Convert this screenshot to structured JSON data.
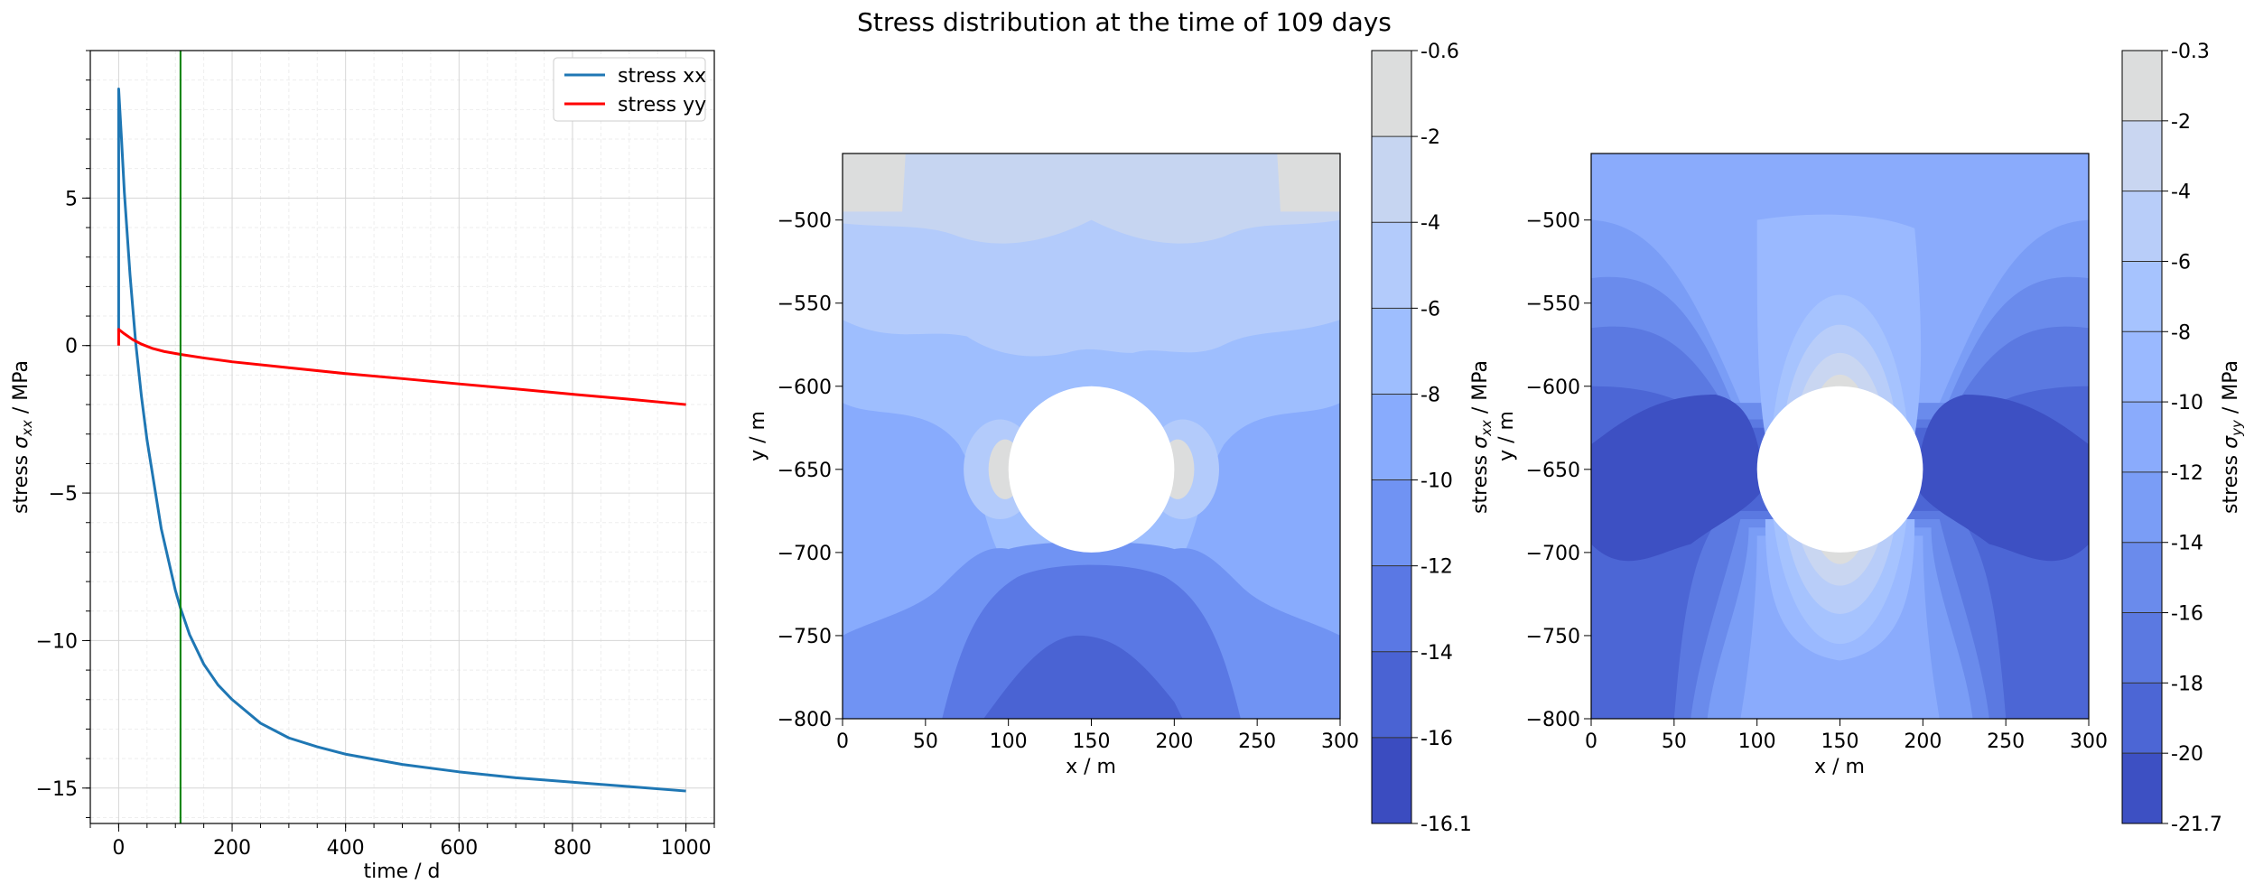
{
  "title": "Stress distribution at the time of 109 days",
  "chart_data": [
    {
      "type": "line",
      "xlabel": "time / d",
      "ylabel": {
        "prefix": "stress ",
        "symbol": "σ",
        "sub": "xx",
        "suffix": " / MPa"
      },
      "xlim": [
        -50,
        1050
      ],
      "ylim": [
        -16.2,
        10
      ],
      "xticks": [
        0,
        200,
        400,
        600,
        800,
        1000
      ],
      "xtick_labels": [
        "0",
        "200",
        "400",
        "600",
        "800",
        "1000"
      ],
      "yticks": [
        5,
        0,
        -5,
        -10,
        -15
      ],
      "ytick_labels": [
        "5",
        "0",
        "−5",
        "−10",
        "−15"
      ],
      "grid": true,
      "legend": {
        "placement": "top-right"
      },
      "marker_time": 109,
      "marker_color": "#008000",
      "series": [
        {
          "name": "stress xx",
          "color": "#1f77b4",
          "x": [
            0,
            0,
            5,
            10,
            20,
            30,
            40,
            50,
            75,
            100,
            109,
            125,
            150,
            175,
            200,
            250,
            300,
            350,
            400,
            500,
            600,
            700,
            800,
            900,
            1000
          ],
          "y": [
            0.5,
            8.7,
            7.0,
            5.2,
            2.4,
            0.1,
            -1.7,
            -3.2,
            -6.2,
            -8.3,
            -8.9,
            -9.8,
            -10.8,
            -11.5,
            -12.0,
            -12.8,
            -13.3,
            -13.6,
            -13.85,
            -14.2,
            -14.45,
            -14.65,
            -14.8,
            -14.95,
            -15.1
          ]
        },
        {
          "name": "stress yy",
          "color": "#ff0000",
          "x": [
            0,
            0,
            10,
            25,
            40,
            60,
            80,
            109,
            150,
            200,
            300,
            400,
            500,
            600,
            700,
            800,
            900,
            1000
          ],
          "y": [
            0,
            0.55,
            0.4,
            0.2,
            0.05,
            -0.1,
            -0.2,
            -0.3,
            -0.42,
            -0.55,
            -0.75,
            -0.95,
            -1.12,
            -1.3,
            -1.47,
            -1.65,
            -1.82,
            -2.0
          ]
        }
      ]
    },
    {
      "type": "heatmap",
      "xlabel": "x / m",
      "ylabel": "y / m",
      "xlim": [
        0,
        300
      ],
      "ylim": [
        -800,
        -460
      ],
      "xticks": [
        "0",
        "50",
        "100",
        "150",
        "200",
        "250",
        "300"
      ],
      "yticks": [
        "−500",
        "−550",
        "−600",
        "−650",
        "−700",
        "−750",
        "−800"
      ],
      "colorbar": {
        "label": {
          "prefix": "stress ",
          "symbol": "σ",
          "sub": "xx",
          "suffix": " / MPa"
        },
        "levels": [
          "-0.6",
          "-2",
          "-4",
          "-6",
          "-8",
          "-10",
          "-12",
          "-14",
          "-16",
          "-16.1"
        ],
        "colors": [
          "#dcdddd",
          "#c6d5f1",
          "#b3cbfb",
          "#9ebefe",
          "#88abfd",
          "#7093f3",
          "#5a78e4",
          "#4a63d3",
          "#3b4cc0"
        ]
      }
    },
    {
      "type": "heatmap",
      "xlabel": "x / m",
      "ylabel": "y / m",
      "xlim": [
        0,
        300
      ],
      "ylim": [
        -800,
        -460
      ],
      "xticks": [
        "0",
        "50",
        "100",
        "150",
        "200",
        "250",
        "300"
      ],
      "yticks": [
        "−500",
        "−550",
        "−600",
        "−650",
        "−700",
        "−750",
        "−800"
      ],
      "colorbar": {
        "label": {
          "prefix": "stress ",
          "symbol": "σ",
          "sub": "yy",
          "suffix": " / MPa"
        },
        "levels": [
          "-0.3",
          "-2",
          "-4",
          "-6",
          "-8",
          "-10",
          "-12",
          "-14",
          "-16",
          "-18",
          "-20",
          "-21.7"
        ],
        "colors": [
          "#dcdddd",
          "#c9d6f1",
          "#b8cdf9",
          "#a6c3fe",
          "#9ab9ff",
          "#8aabfc",
          "#7a9df6",
          "#6a8bec",
          "#5b79e1",
          "#4c66d5",
          "#3d50c3"
        ]
      }
    }
  ]
}
